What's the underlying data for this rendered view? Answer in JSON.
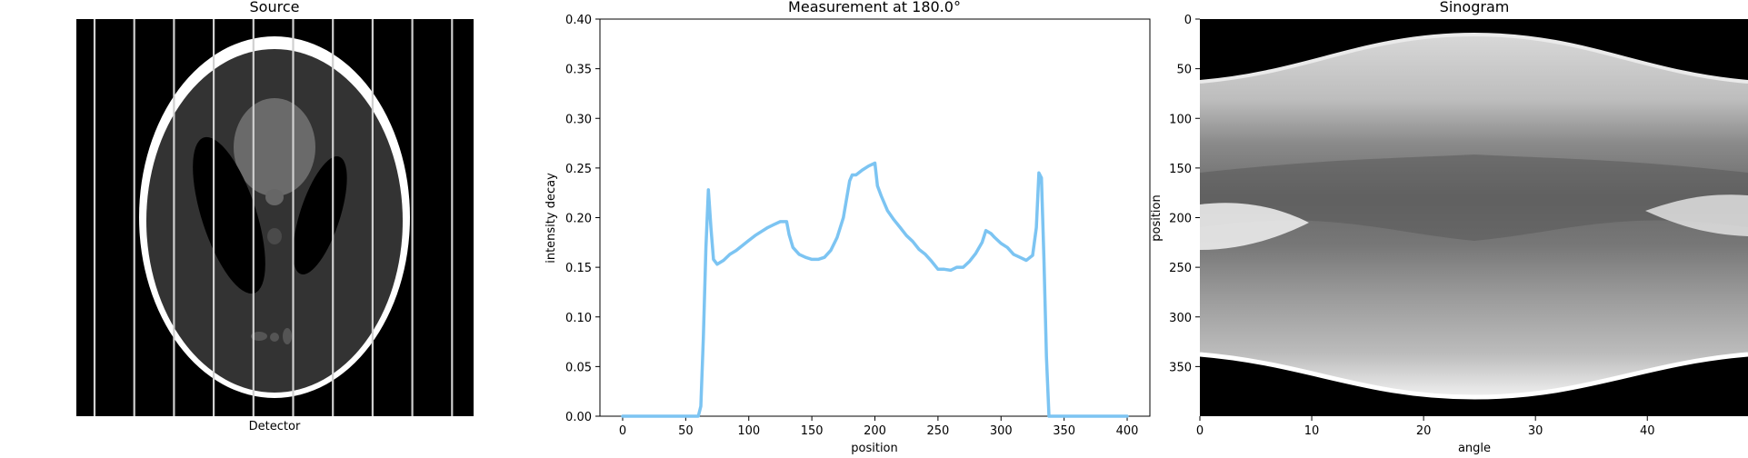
{
  "figure": {
    "panels": [
      {
        "title": "Source",
        "xlabel": "Detector"
      },
      {
        "title": "Measurement at 180.0°",
        "xlabel": "position",
        "ylabel": "intensity decay"
      },
      {
        "title": "Sinogram",
        "xlabel": "angle",
        "ylabel": "position"
      }
    ]
  },
  "colors": {
    "line": "#7cc4f2",
    "background": "#000000",
    "phantom_outline": "#ffffff"
  },
  "chart_data": [
    {
      "type": "image",
      "title": "Source",
      "xlabel": "Detector",
      "description_note": "Shepp-Logan phantom with 10 vertical detector lines"
    },
    {
      "type": "line",
      "title": "Measurement at 180.0°",
      "xlabel": "position",
      "ylabel": "intensity decay",
      "xlim": [
        -18,
        418
      ],
      "ylim": [
        0,
        0.4
      ],
      "xticks": [
        0,
        50,
        100,
        150,
        200,
        250,
        300,
        350,
        400
      ],
      "yticks": [
        "0.00",
        "0.05",
        "0.10",
        "0.15",
        "0.20",
        "0.25",
        "0.30",
        "0.35",
        "0.40"
      ],
      "series": [
        {
          "x": [
            0,
            60,
            62,
            64,
            66,
            68,
            70,
            72,
            75,
            80,
            85,
            90,
            95,
            100,
            105,
            110,
            115,
            120,
            125,
            130,
            132,
            135,
            140,
            145,
            150,
            155,
            160,
            165,
            170,
            175,
            180,
            182,
            185,
            190,
            195,
            200,
            202,
            205,
            210,
            215,
            220,
            225,
            230,
            235,
            240,
            245,
            250,
            255,
            260,
            265,
            270,
            275,
            280,
            285,
            288,
            292,
            295,
            300,
            305,
            310,
            315,
            320,
            325,
            328,
            330,
            332,
            334,
            336,
            338,
            340,
            342,
            345,
            400
          ],
          "y": [
            0.0,
            0.0,
            0.01,
            0.08,
            0.17,
            0.228,
            0.19,
            0.158,
            0.153,
            0.157,
            0.163,
            0.167,
            0.172,
            0.177,
            0.182,
            0.186,
            0.19,
            0.193,
            0.196,
            0.196,
            0.183,
            0.17,
            0.163,
            0.16,
            0.158,
            0.158,
            0.16,
            0.167,
            0.18,
            0.2,
            0.237,
            0.243,
            0.243,
            0.248,
            0.252,
            0.255,
            0.232,
            0.222,
            0.207,
            0.198,
            0.19,
            0.182,
            0.176,
            0.168,
            0.163,
            0.156,
            0.148,
            0.148,
            0.147,
            0.15,
            0.15,
            0.156,
            0.164,
            0.175,
            0.187,
            0.184,
            0.18,
            0.174,
            0.17,
            0.163,
            0.16,
            0.157,
            0.162,
            0.19,
            0.245,
            0.24,
            0.16,
            0.06,
            0.0,
            0.0,
            0.0,
            0.0,
            0.0
          ]
        }
      ]
    },
    {
      "type": "heatmap",
      "title": "Sinogram",
      "xlabel": "angle",
      "ylabel": "position",
      "xlim": [
        0,
        49
      ],
      "ylim": [
        400,
        0
      ],
      "xticks": [
        0,
        10,
        20,
        30,
        40
      ],
      "yticks": [
        0,
        50,
        100,
        150,
        200,
        250,
        300,
        350
      ],
      "colormap": "gray"
    }
  ]
}
